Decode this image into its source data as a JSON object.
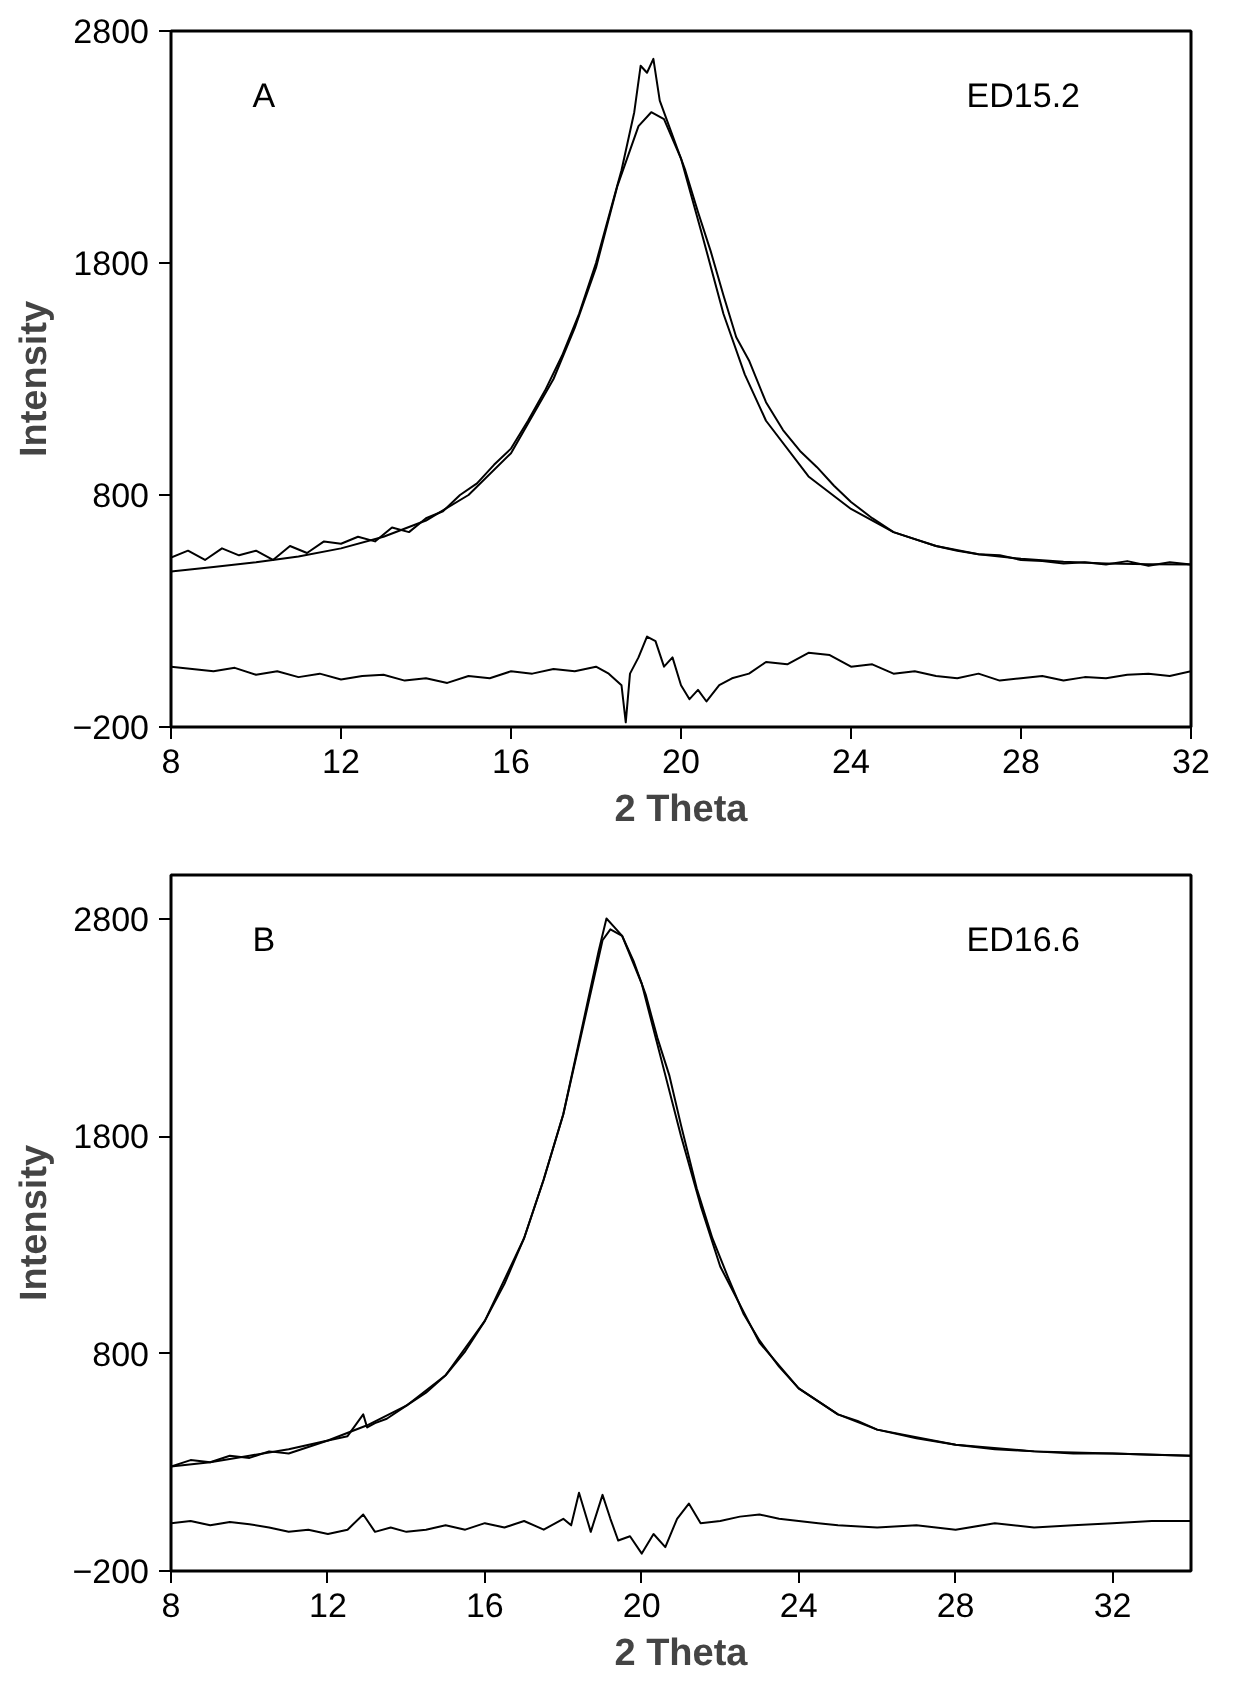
{
  "chart_data": [
    {
      "type": "line",
      "xlabel": "2 Theta",
      "ylabel": "Intensity",
      "annotations": [
        "A",
        "ED15.2"
      ],
      "xlim": [
        8,
        32
      ],
      "ylim": [
        -200,
        2800
      ],
      "xticks": [
        8,
        12,
        16,
        20,
        24,
        28,
        32
      ],
      "yticks": [
        -200,
        800,
        1800,
        2800
      ],
      "grid": false,
      "series": [
        {
          "color": "#000000",
          "x": [
            8,
            8.4,
            8.8,
            9.2,
            9.6,
            10,
            10.4,
            10.8,
            11.2,
            11.6,
            12,
            12.4,
            12.8,
            13.2,
            13.6,
            14,
            14.4,
            14.8,
            15.2,
            15.6,
            16,
            16.4,
            16.8,
            17.2,
            17.6,
            18,
            18.3,
            18.6,
            18.9,
            19.05,
            19.2,
            19.35,
            19.5,
            19.7,
            19.9,
            20.1,
            20.4,
            20.7,
            21,
            21.3,
            21.6,
            22,
            22.4,
            22.8,
            23.2,
            23.6,
            24,
            24.5,
            25,
            25.5,
            26,
            26.5,
            27,
            27.5,
            28,
            28.5,
            29,
            29.5,
            30,
            30.5,
            31,
            31.5,
            32
          ],
          "values": [
            530,
            560,
            520,
            570,
            540,
            560,
            520,
            580,
            550,
            600,
            590,
            620,
            600,
            660,
            640,
            700,
            730,
            800,
            850,
            930,
            1000,
            1120,
            1250,
            1400,
            1580,
            1800,
            2000,
            2200,
            2450,
            2650,
            2620,
            2680,
            2500,
            2400,
            2300,
            2200,
            2020,
            1850,
            1660,
            1480,
            1380,
            1200,
            1080,
            990,
            920,
            840,
            770,
            700,
            640,
            610,
            580,
            560,
            545,
            540,
            520,
            515,
            505,
            510,
            500,
            515,
            495,
            510,
            500
          ]
        },
        {
          "color": "#000000",
          "x": [
            8,
            9,
            10,
            11,
            12,
            13,
            14,
            15,
            16,
            17,
            17.5,
            18,
            18.5,
            19,
            19.3,
            19.6,
            20,
            20.5,
            21,
            21.5,
            22,
            23,
            24,
            25,
            26,
            27,
            28,
            29,
            30,
            31,
            32
          ],
          "values": [
            470,
            490,
            510,
            535,
            570,
            620,
            690,
            800,
            980,
            1300,
            1520,
            1780,
            2130,
            2390,
            2450,
            2420,
            2250,
            1920,
            1580,
            1320,
            1120,
            880,
            740,
            640,
            580,
            545,
            525,
            512,
            505,
            502,
            500
          ]
        },
        {
          "color": "#000000",
          "x": [
            8,
            8.5,
            9,
            9.5,
            10,
            10.5,
            11,
            11.5,
            12,
            12.5,
            13,
            13.5,
            14,
            14.5,
            15,
            15.5,
            16,
            16.5,
            17,
            17.5,
            18,
            18.3,
            18.6,
            18.7,
            18.8,
            19,
            19.2,
            19.4,
            19.6,
            19.8,
            20,
            20.2,
            20.4,
            20.6,
            20.9,
            21.2,
            21.6,
            22,
            22.5,
            23,
            23.5,
            24,
            24.5,
            25,
            25.5,
            26,
            26.5,
            27,
            27.5,
            28,
            28.5,
            29,
            29.5,
            30,
            30.5,
            31,
            31.5,
            32
          ],
          "values": [
            60,
            50,
            40,
            55,
            25,
            40,
            15,
            30,
            5,
            20,
            25,
            0,
            10,
            -10,
            20,
            10,
            40,
            30,
            50,
            40,
            60,
            30,
            -20,
            -180,
            30,
            100,
            190,
            170,
            60,
            100,
            -20,
            -80,
            -40,
            -90,
            -20,
            10,
            30,
            80,
            70,
            120,
            110,
            60,
            70,
            30,
            40,
            20,
            10,
            30,
            0,
            10,
            20,
            0,
            15,
            10,
            25,
            30,
            20,
            40
          ]
        }
      ]
    },
    {
      "type": "line",
      "xlabel": "2 Theta",
      "ylabel": "Intensity",
      "annotations": [
        "B",
        "ED16.6"
      ],
      "xlim": [
        8,
        34
      ],
      "ylim": [
        -200,
        3000
      ],
      "xticks": [
        8,
        12,
        16,
        20,
        24,
        28,
        32
      ],
      "yticks": [
        -200,
        800,
        1800,
        2800
      ],
      "grid": false,
      "series": [
        {
          "color": "#000000",
          "x": [
            8,
            8.5,
            9,
            9.5,
            10,
            10.5,
            11,
            11.5,
            12,
            12.5,
            12.9,
            13,
            13.2,
            13.5,
            14,
            14.5,
            15,
            15.5,
            16,
            16.5,
            17,
            17.5,
            18,
            18.3,
            18.6,
            18.9,
            19.1,
            19.3,
            19.5,
            19.8,
            20.1,
            20.4,
            20.7,
            21,
            21.4,
            21.8,
            22.2,
            22.6,
            23,
            23.5,
            24,
            24.5,
            25,
            25.5,
            26,
            27,
            28,
            29,
            30,
            31,
            32,
            33,
            34
          ],
          "values": [
            280,
            310,
            300,
            330,
            320,
            350,
            340,
            370,
            400,
            420,
            520,
            460,
            480,
            500,
            560,
            620,
            700,
            810,
            950,
            1120,
            1330,
            1600,
            1900,
            2150,
            2400,
            2650,
            2800,
            2760,
            2720,
            2600,
            2450,
            2250,
            2080,
            1850,
            1560,
            1330,
            1150,
            980,
            860,
            740,
            640,
            580,
            520,
            490,
            450,
            410,
            380,
            360,
            350,
            340,
            340,
            335,
            330
          ]
        },
        {
          "color": "#000000",
          "x": [
            8,
            9,
            10,
            11,
            12,
            13,
            14,
            15,
            16,
            17,
            17.5,
            18,
            18.5,
            19,
            19.2,
            19.5,
            20,
            20.5,
            21,
            21.5,
            22,
            23,
            24,
            25,
            26,
            28,
            30,
            32,
            34
          ],
          "values": [
            280,
            300,
            330,
            360,
            400,
            470,
            560,
            700,
            950,
            1330,
            1600,
            1900,
            2300,
            2700,
            2750,
            2720,
            2500,
            2150,
            1800,
            1480,
            1200,
            850,
            640,
            520,
            450,
            380,
            350,
            340,
            330
          ]
        },
        {
          "color": "#000000",
          "x": [
            8,
            8.5,
            9,
            9.5,
            10,
            10.5,
            11,
            11.5,
            12,
            12.5,
            12.9,
            13.2,
            13.6,
            14,
            14.5,
            15,
            15.5,
            16,
            16.5,
            17,
            17.5,
            18,
            18.2,
            18.4,
            18.7,
            19,
            19.2,
            19.4,
            19.7,
            20,
            20.3,
            20.6,
            20.9,
            21.2,
            21.5,
            22,
            22.5,
            23,
            23.5,
            24,
            24.5,
            25,
            26,
            27,
            28,
            29,
            30,
            31,
            32,
            33,
            34
          ],
          "values": [
            20,
            30,
            10,
            25,
            15,
            0,
            -20,
            -10,
            -30,
            -10,
            60,
            -20,
            0,
            -20,
            -10,
            10,
            -10,
            20,
            0,
            30,
            -10,
            40,
            10,
            160,
            -20,
            150,
            40,
            -60,
            -40,
            -120,
            -30,
            -90,
            40,
            110,
            20,
            30,
            50,
            60,
            40,
            30,
            20,
            10,
            0,
            10,
            -10,
            20,
            0,
            10,
            20,
            30,
            30
          ]
        }
      ]
    }
  ]
}
